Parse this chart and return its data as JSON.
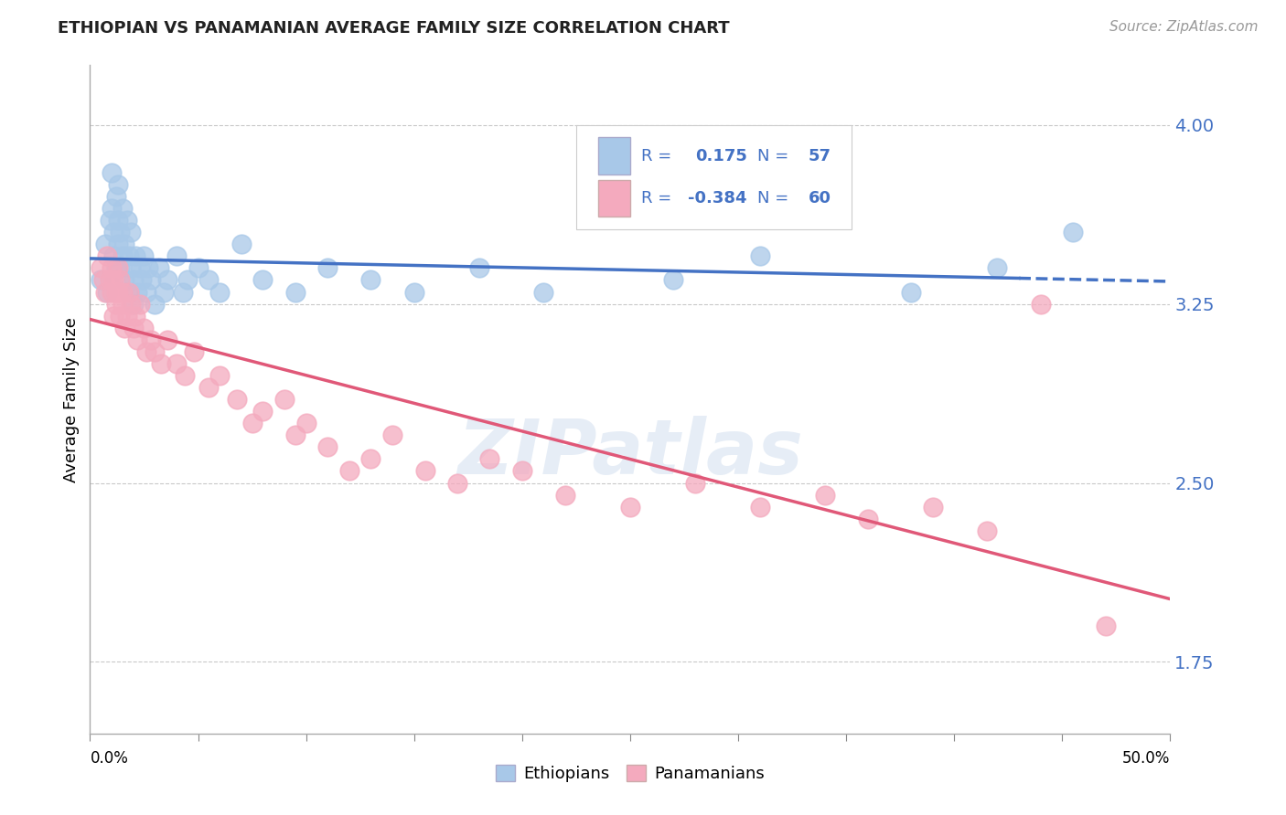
{
  "title": "ETHIOPIAN VS PANAMANIAN AVERAGE FAMILY SIZE CORRELATION CHART",
  "source": "Source: ZipAtlas.com",
  "ylabel": "Average Family Size",
  "yticks": [
    1.75,
    2.5,
    3.25,
    4.0
  ],
  "ytick_labels": [
    "1.75",
    "2.50",
    "3.25",
    "4.00"
  ],
  "xlim": [
    0.0,
    0.5
  ],
  "ylim": [
    1.45,
    4.25
  ],
  "watermark": "ZIPatlas",
  "ethiopian_R": 0.175,
  "ethiopian_N": 57,
  "panamanian_R": -0.384,
  "panamanian_N": 60,
  "blue_color": "#A8C8E8",
  "pink_color": "#F4AABE",
  "blue_line_color": "#4472C4",
  "pink_line_color": "#E05878",
  "legend_text_color": "#4472C4",
  "tick_color": "#4472C4",
  "ethiopian_x": [
    0.005,
    0.007,
    0.008,
    0.009,
    0.01,
    0.01,
    0.011,
    0.011,
    0.012,
    0.012,
    0.013,
    0.013,
    0.013,
    0.014,
    0.014,
    0.015,
    0.015,
    0.016,
    0.016,
    0.017,
    0.018,
    0.018,
    0.019,
    0.019,
    0.02,
    0.02,
    0.021,
    0.022,
    0.023,
    0.024,
    0.025,
    0.026,
    0.027,
    0.028,
    0.03,
    0.032,
    0.034,
    0.036,
    0.04,
    0.043,
    0.045,
    0.05,
    0.055,
    0.06,
    0.07,
    0.08,
    0.095,
    0.11,
    0.13,
    0.15,
    0.18,
    0.21,
    0.27,
    0.31,
    0.38,
    0.42,
    0.455
  ],
  "ethiopian_y": [
    3.35,
    3.5,
    3.3,
    3.6,
    3.65,
    3.8,
    3.55,
    3.45,
    3.4,
    3.7,
    3.6,
    3.75,
    3.5,
    3.55,
    3.4,
    3.65,
    3.45,
    3.5,
    3.35,
    3.6,
    3.45,
    3.3,
    3.55,
    3.4,
    3.35,
    3.25,
    3.45,
    3.3,
    3.4,
    3.35,
    3.45,
    3.3,
    3.4,
    3.35,
    3.25,
    3.4,
    3.3,
    3.35,
    3.45,
    3.3,
    3.35,
    3.4,
    3.35,
    3.3,
    3.5,
    3.35,
    3.3,
    3.4,
    3.35,
    3.3,
    3.4,
    3.3,
    3.35,
    3.45,
    3.3,
    3.4,
    3.55
  ],
  "panamanian_x": [
    0.005,
    0.006,
    0.007,
    0.008,
    0.009,
    0.01,
    0.01,
    0.011,
    0.011,
    0.012,
    0.012,
    0.013,
    0.013,
    0.014,
    0.014,
    0.015,
    0.015,
    0.016,
    0.017,
    0.018,
    0.019,
    0.02,
    0.021,
    0.022,
    0.023,
    0.025,
    0.026,
    0.028,
    0.03,
    0.033,
    0.036,
    0.04,
    0.044,
    0.048,
    0.055,
    0.06,
    0.068,
    0.075,
    0.08,
    0.09,
    0.095,
    0.1,
    0.11,
    0.12,
    0.13,
    0.14,
    0.155,
    0.17,
    0.185,
    0.2,
    0.22,
    0.25,
    0.28,
    0.31,
    0.34,
    0.36,
    0.39,
    0.415,
    0.44,
    0.47
  ],
  "panamanian_y": [
    3.4,
    3.35,
    3.3,
    3.45,
    3.35,
    3.4,
    3.3,
    3.35,
    3.2,
    3.3,
    3.25,
    3.4,
    3.3,
    3.35,
    3.2,
    3.25,
    3.3,
    3.15,
    3.2,
    3.3,
    3.25,
    3.15,
    3.2,
    3.1,
    3.25,
    3.15,
    3.05,
    3.1,
    3.05,
    3.0,
    3.1,
    3.0,
    2.95,
    3.05,
    2.9,
    2.95,
    2.85,
    2.75,
    2.8,
    2.85,
    2.7,
    2.75,
    2.65,
    2.55,
    2.6,
    2.7,
    2.55,
    2.5,
    2.6,
    2.55,
    2.45,
    2.4,
    2.5,
    2.4,
    2.45,
    2.35,
    2.4,
    2.3,
    3.25,
    1.9
  ]
}
